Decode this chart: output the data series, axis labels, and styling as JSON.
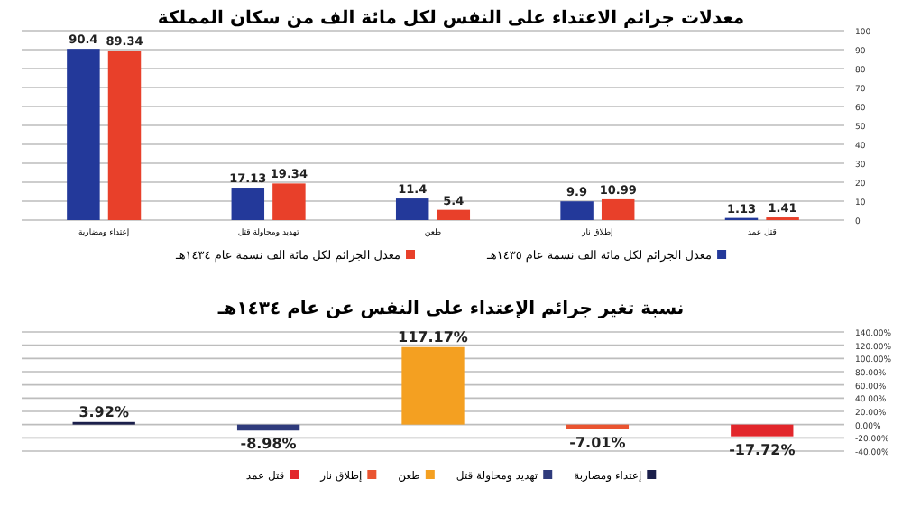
{
  "chart_data": [
    {
      "type": "bar",
      "title": "معدلات جرائم الاعتداء على النفس لكل مائة الف من سكان المملكة",
      "categories": [
        "إعتداء ومضاربة",
        "تهديد ومحاولة قتل",
        "طعن",
        "إطلاق نار",
        "قتل عمد"
      ],
      "series": [
        {
          "name": "معدل الجرائم لكل مائة الف نسمة عام ١٤٣٥هـ",
          "color": "#23399a",
          "values": [
            90.4,
            17.13,
            11.4,
            9.9,
            1.13
          ]
        },
        {
          "name": "معدل الجرائم لكل مائة الف نسمة عام ١٤٣٤هـ",
          "color": "#e8402a",
          "values": [
            89.34,
            19.34,
            5.4,
            10.99,
            1.41
          ]
        }
      ],
      "ylim": [
        0,
        100
      ],
      "yticks": [
        0,
        10,
        20,
        30,
        40,
        50,
        60,
        70,
        80,
        90,
        100
      ],
      "grid": "y",
      "legend": "bottom",
      "data_labels": true
    },
    {
      "type": "bar",
      "title": "نسبة تغير جرائم الإعتداء على النفس عن عام ١٤٣٤هـ",
      "categories": [
        null,
        null,
        null,
        null,
        null
      ],
      "series": [
        {
          "name": "إعتداء ومضاربة",
          "color": "#1b1f4b",
          "values": [
            3.92,
            null,
            null,
            null,
            null
          ],
          "value_labels": [
            "3.92%",
            null,
            null,
            null,
            null
          ]
        },
        {
          "name": "تهديد ومحاولة قتل",
          "color": "#2f3b7c",
          "values": [
            null,
            -8.98,
            null,
            null,
            null
          ],
          "value_labels": [
            null,
            "-8.98%",
            null,
            null,
            null
          ]
        },
        {
          "name": "طعن",
          "color": "#f4a021",
          "values": [
            null,
            null,
            117.17,
            null,
            null
          ],
          "value_labels": [
            null,
            null,
            "117.17%",
            null,
            null
          ]
        },
        {
          "name": "إطلاق نار",
          "color": "#ea5430",
          "values": [
            null,
            null,
            null,
            -7.01,
            null
          ],
          "value_labels": [
            null,
            null,
            null,
            "-7.01%",
            null
          ]
        },
        {
          "name": "قتل عمد",
          "color": "#e2262b",
          "values": [
            null,
            null,
            null,
            null,
            -17.72
          ],
          "value_labels": [
            null,
            null,
            null,
            null,
            "-17.72%"
          ]
        }
      ],
      "stacked": true,
      "ylim": [
        -40,
        140
      ],
      "yticks": [
        {
          "value": -40,
          "label": "-40.00%"
        },
        {
          "value": -20,
          "label": "-20.00%"
        },
        {
          "value": 0,
          "label": "0.00%"
        },
        {
          "value": 20,
          "label": "20.00%"
        },
        {
          "value": 40,
          "label": "40.00%"
        },
        {
          "value": 60,
          "label": "60.00%"
        },
        {
          "value": 80,
          "label": "80.00%"
        },
        {
          "value": 100,
          "label": "100.00%"
        },
        {
          "value": 120,
          "label": "120.00%"
        },
        {
          "value": 140,
          "label": "140.00%"
        }
      ],
      "grid": "y",
      "legend": "bottom"
    }
  ]
}
